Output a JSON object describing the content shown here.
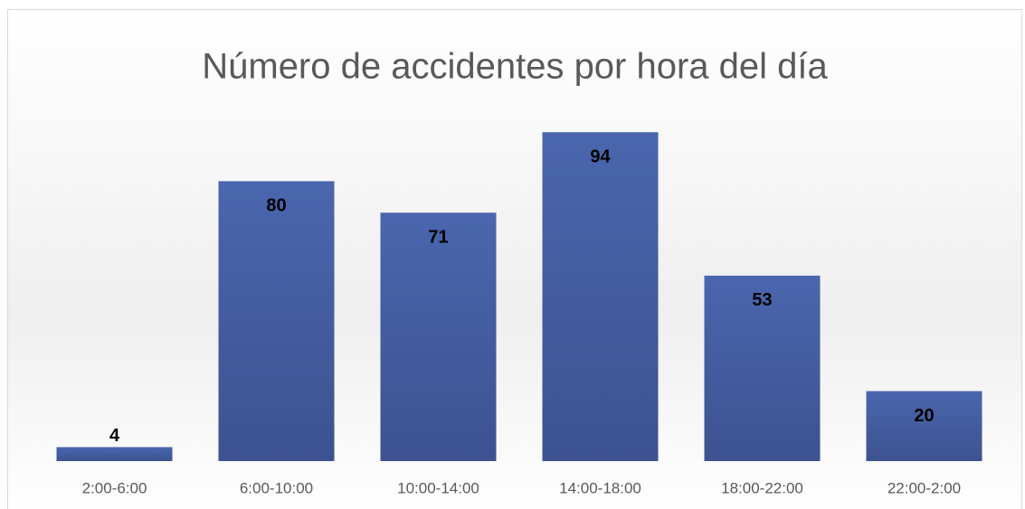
{
  "chart_data": {
    "type": "bar",
    "title": "Número de accidentes por hora del día",
    "categories": [
      "2:00-6:00",
      "6:00-10:00",
      "10:00-14:00",
      "14:00-18:00",
      "18:00-22:00",
      "22:00-2:00"
    ],
    "values": [
      4,
      80,
      71,
      94,
      53,
      20
    ],
    "color": "#4762a8"
  }
}
